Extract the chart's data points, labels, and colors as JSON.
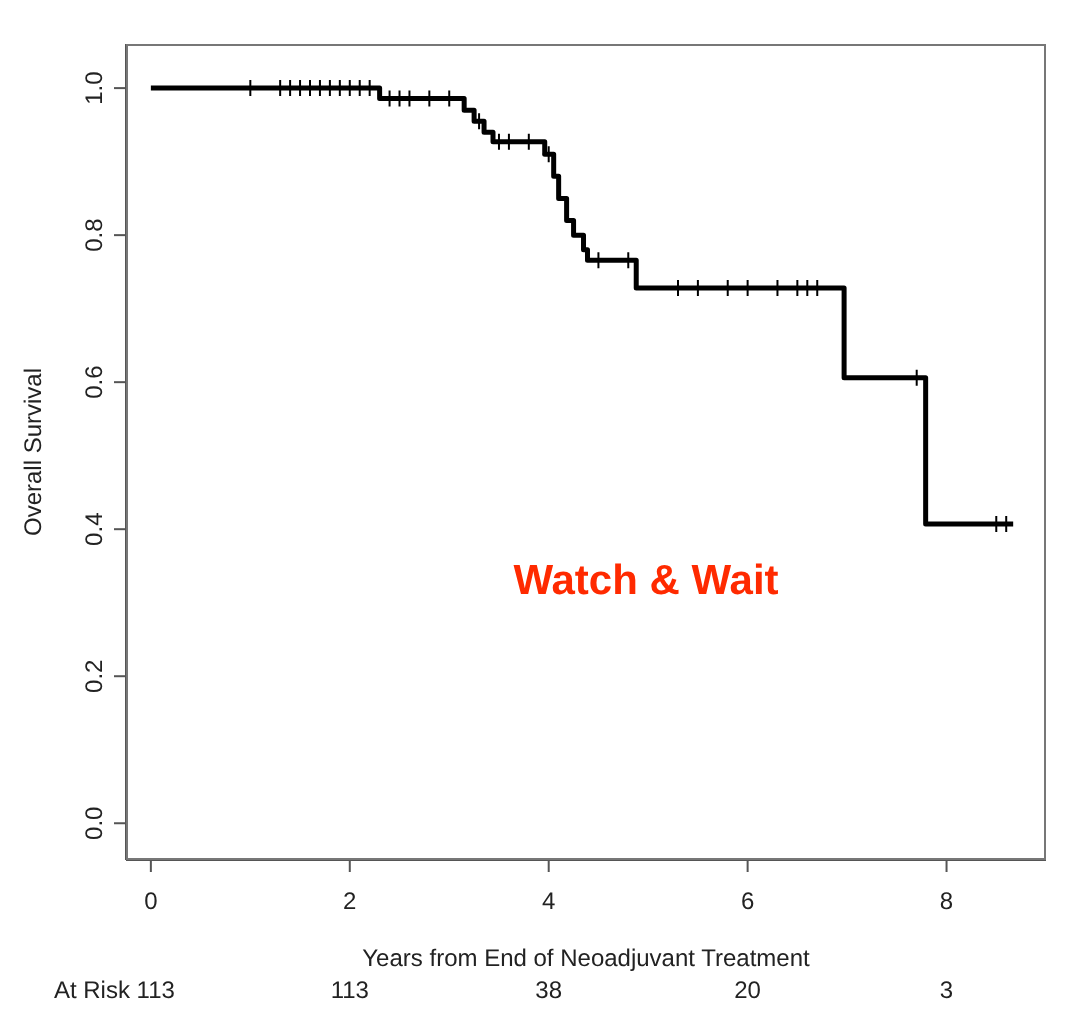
{
  "chart_data": {
    "type": "step",
    "xlabel": "Years from End of Neoadjuvant Treatment",
    "ylabel": "Overall Survival",
    "xlim": [
      -0.25,
      9.0
    ],
    "ylim": [
      -0.05,
      1.06
    ],
    "xticks": [
      0,
      2,
      4,
      6,
      8
    ],
    "yticks": [
      {
        "value": 0,
        "label": "0.0"
      },
      0.2,
      0.4,
      0.6,
      0.8,
      {
        "value": 1,
        "label": "1.0"
      }
    ],
    "grid": false,
    "series": [
      {
        "color": "#000000",
        "marker": "none",
        "x": [
          0,
          2.3,
          3.15,
          3.25,
          3.35,
          3.44,
          3.96,
          4.05,
          4.1,
          4.18,
          4.25,
          4.35,
          4.39,
          4.88,
          6.97,
          7.79,
          8.67
        ],
        "values": [
          1.0,
          0.986,
          0.97,
          0.955,
          0.94,
          0.927,
          0.91,
          0.88,
          0.85,
          0.82,
          0.8,
          0.78,
          0.766,
          0.728,
          0.606,
          0.407,
          0.407
        ]
      },
      {
        "type": "scatter",
        "color": "#000000",
        "marker": "cross",
        "x": [
          1.0,
          1.3,
          1.4,
          1.5,
          1.6,
          1.7,
          1.8,
          1.9,
          2.0,
          2.1,
          2.2,
          2.4,
          2.5,
          2.6,
          2.8,
          3.0,
          3.3,
          3.5,
          3.6,
          3.8,
          4.0,
          4.5,
          4.8,
          5.3,
          5.5,
          5.8,
          6.0,
          6.3,
          6.5,
          6.6,
          6.7,
          7.7,
          8.5,
          8.6
        ],
        "values": [
          1.0,
          1.0,
          1.0,
          1.0,
          1.0,
          1.0,
          1.0,
          1.0,
          1.0,
          1.0,
          1.0,
          0.986,
          0.986,
          0.986,
          0.986,
          0.986,
          0.955,
          0.927,
          0.927,
          0.927,
          0.91,
          0.766,
          0.766,
          0.728,
          0.728,
          0.728,
          0.728,
          0.728,
          0.728,
          0.728,
          0.728,
          0.606,
          0.407,
          0.407
        ]
      }
    ],
    "annotations": [
      "Watch & Wait",
      "At Risk 113",
      "113",
      "38",
      "20",
      "3"
    ]
  }
}
